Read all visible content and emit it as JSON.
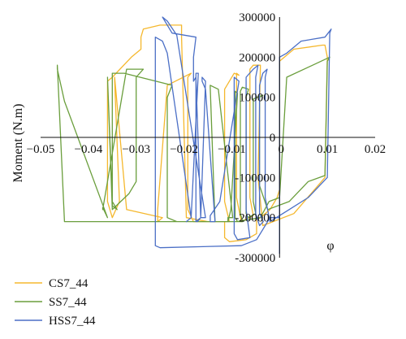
{
  "chart_data": {
    "type": "line",
    "title": "",
    "xlabel": "φ",
    "ylabel": "Moment (N.m)",
    "xlim": [
      -0.05,
      0.02
    ],
    "ylim": [
      -300000,
      300000
    ],
    "x_ticks": [
      -0.05,
      -0.04,
      -0.03,
      -0.02,
      -0.01,
      0,
      0.01,
      0.02
    ],
    "x_tick_labels": [
      "−0.05",
      "−0.04",
      "−0.03",
      "−0.02",
      "−0.01",
      "0",
      "0.01",
      "0.02"
    ],
    "y_ticks": [
      300000,
      200000,
      100000,
      0,
      -100000,
      -200000,
      -300000
    ],
    "y_tick_labels": [
      "300000",
      "200000",
      "100000",
      "0",
      "-100000",
      "-200000",
      "-300000"
    ],
    "grid": false,
    "legend_position": "bottom-left",
    "series": [
      {
        "name": "CS7_44",
        "color": "#F5B82E",
        "x": [
          0,
          0,
          0.003,
          0.009,
          0.0095,
          0.01,
          0.0095,
          0.003,
          -0.0035,
          -0.0045,
          -0.004,
          -0.0055,
          -0.0062,
          -0.0062,
          -0.0055,
          -0.008,
          -0.009,
          -0.009,
          -0.0085,
          -0.0095,
          -0.0115,
          -0.0115,
          -0.0105,
          -0.018,
          -0.0192,
          -0.0192,
          -0.0185,
          -0.0235,
          -0.0255,
          -0.0255,
          -0.0245,
          -0.032,
          -0.0345,
          -0.0345,
          -0.0335,
          -0.035,
          -0.036,
          -0.036,
          -0.035,
          -0.031,
          -0.029,
          -0.029,
          -0.0285,
          -0.025,
          -0.0205,
          -0.0205,
          -0.0195,
          -0.015,
          -0.0115,
          -0.0115,
          -0.0105,
          -0.007,
          -0.0048,
          -0.0048,
          -0.004,
          -0.002,
          -0.0005,
          0
        ],
        "y": [
          -130000,
          190000,
          220000,
          230000,
          230000,
          200000,
          -100000,
          -190000,
          -220000,
          -100000,
          180000,
          180000,
          170000,
          -150000,
          -195000,
          -210000,
          -150000,
          160000,
          155000,
          160000,
          120000,
          -160000,
          -210000,
          -210000,
          -180000,
          150000,
          160000,
          130000,
          -180000,
          -210000,
          -200000,
          -180000,
          150000,
          140000,
          -160000,
          -200000,
          -160000,
          140000,
          150000,
          200000,
          220000,
          250000,
          270000,
          280000,
          280000,
          250000,
          -200000,
          -210000,
          -210000,
          -250000,
          -260000,
          -255000,
          -240000,
          -205000,
          -200000,
          -180000,
          -150000,
          -130000
        ]
      },
      {
        "name": "SS7_44",
        "color": "#6A9E3C",
        "x": [
          0,
          0.0015,
          0.006,
          0.0105,
          0.01,
          0.0095,
          0.006,
          0.002,
          -0.0025,
          -0.0042,
          -0.0042,
          -0.0035,
          -0.0048,
          -0.0055,
          -0.0055,
          -0.005,
          -0.0065,
          -0.007,
          -0.007,
          -0.0065,
          -0.0078,
          -0.0082,
          -0.0082,
          -0.0077,
          -0.0088,
          -0.0093,
          -0.0093,
          -0.0088,
          -0.0102,
          -0.0108,
          -0.0108,
          -0.0098,
          -0.0128,
          -0.0145,
          -0.0145,
          -0.0135,
          -0.0215,
          -0.0235,
          -0.0235,
          -0.0225,
          -0.0325,
          -0.035,
          -0.035,
          -0.034,
          -0.035,
          -0.036,
          -0.036,
          -0.035,
          -0.0315,
          -0.03,
          -0.03,
          -0.0285,
          -0.032,
          -0.037,
          -0.037,
          -0.036,
          -0.045,
          -0.0465,
          -0.0465,
          -0.045,
          -0.03,
          -0.0245,
          -0.009,
          -0.004,
          -0.0022,
          0
        ],
        "y": [
          -150000,
          150000,
          175000,
          200000,
          190000,
          -95000,
          -110000,
          -160000,
          -180000,
          -120000,
          100000,
          105000,
          100000,
          95000,
          -160000,
          -190000,
          -200000,
          -190000,
          100000,
          120000,
          125000,
          115000,
          -190000,
          -210000,
          -210000,
          -200000,
          115000,
          110000,
          -180000,
          -210000,
          -200000,
          -200000,
          120000,
          130000,
          125000,
          -210000,
          -210000,
          -200000,
          100000,
          130000,
          160000,
          160000,
          -170000,
          -180000,
          -160000,
          150000,
          150000,
          -180000,
          -140000,
          -110000,
          150000,
          170000,
          170000,
          -180000,
          -175000,
          -200000,
          90000,
          170000,
          180000,
          -210000,
          -210000,
          -210000,
          -210000,
          -200000,
          -160000,
          -150000
        ]
      },
      {
        "name": "HSS7_44",
        "color": "#4B6FC6",
        "x": [
          0,
          0,
          0.0015,
          0.0045,
          0.0095,
          0.0108,
          0.0105,
          0.01,
          0.006,
          0.002,
          -0.002,
          -0.003,
          -0.003,
          -0.0026,
          -0.0035,
          -0.0042,
          -0.0042,
          -0.0034,
          -0.0042,
          -0.005,
          -0.005,
          -0.0045,
          -0.0055,
          -0.007,
          -0.007,
          -0.0062,
          -0.0088,
          -0.0095,
          -0.0095,
          -0.0085,
          -0.0125,
          -0.0145,
          -0.0145,
          -0.0135,
          -0.0155,
          -0.0162,
          -0.0162,
          -0.0155,
          -0.0165,
          -0.0172,
          -0.0172,
          -0.0165,
          -0.0175,
          -0.018,
          -0.018,
          -0.0175,
          -0.0225,
          -0.0245,
          -0.0245,
          -0.0235,
          -0.0215,
          -0.0155,
          -0.0165,
          -0.0175,
          -0.0175,
          -0.017,
          -0.0185,
          -0.0195,
          -0.0195,
          -0.0185,
          -0.0235,
          -0.0245,
          -0.026,
          -0.026,
          -0.025,
          -0.008,
          -0.0048,
          -0.003,
          -0.002,
          0
        ],
        "y": [
          -290000,
          200000,
          210000,
          240000,
          250000,
          270000,
          260000,
          -100000,
          -150000,
          -180000,
          -210000,
          -150000,
          150000,
          170000,
          160000,
          130000,
          -190000,
          -210000,
          -220000,
          -190000,
          150000,
          180000,
          170000,
          150000,
          -180000,
          -250000,
          -255000,
          -240000,
          150000,
          140000,
          -160000,
          -195000,
          -210000,
          -210000,
          120000,
          140000,
          150000,
          140000,
          -200000,
          -210000,
          -210000,
          -200000,
          150000,
          140000,
          200000,
          250000,
          260000,
          300000,
          300000,
          290000,
          255000,
          -200000,
          -200000,
          -210000,
          160000,
          160000,
          -200000,
          -210000,
          -210000,
          -200000,
          210000,
          240000,
          250000,
          -270000,
          -275000,
          -270000,
          -255000,
          -220000,
          -200000,
          -200000
        ]
      }
    ]
  }
}
